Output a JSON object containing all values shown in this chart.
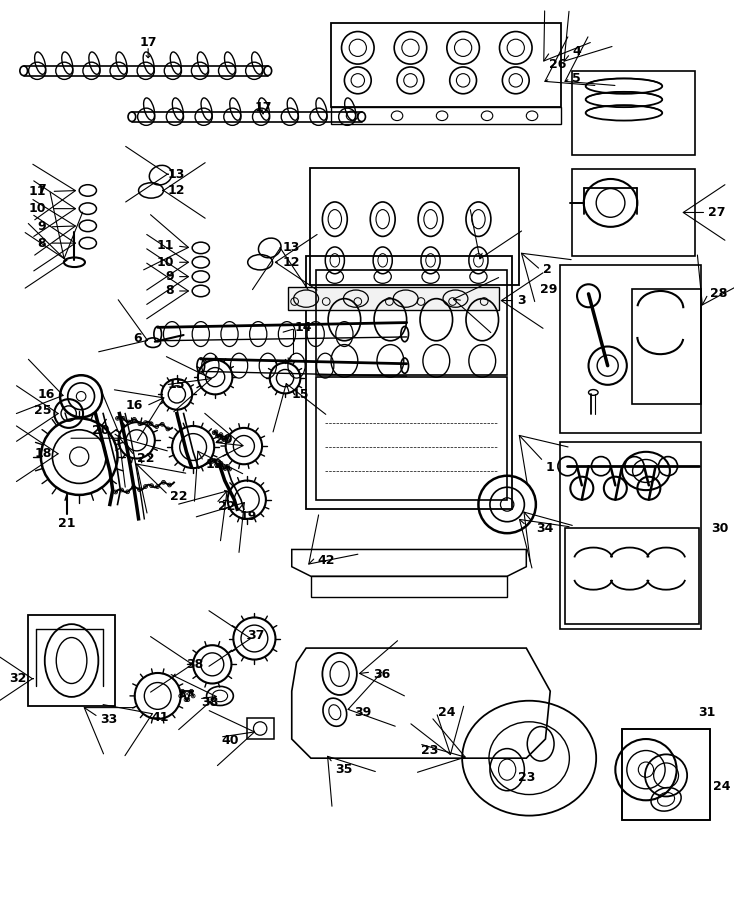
{
  "bg": "#ffffff",
  "lc": "#000000",
  "figsize": [
    7.34,
    9.0
  ],
  "dpi": 100,
  "fs": 8.0
}
